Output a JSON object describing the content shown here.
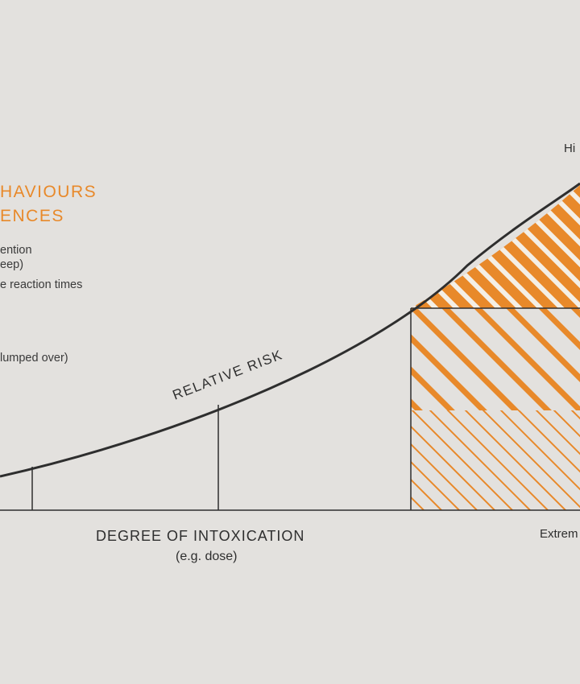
{
  "legend": {
    "heading_line1": "HAVIOURS",
    "heading_line2": "ENCES",
    "items": [
      "ention",
      "eep)",
      "e reaction times",
      "lumped over)"
    ]
  },
  "curve_label": "RELATIVE RISK",
  "x_axis": {
    "label": "DEGREE OF INTOXICATION",
    "sublabel": "(e.g. dose)",
    "right_label": "Extrem"
  },
  "top_right_label": "Hi",
  "colors": {
    "background": "#e3e1de",
    "accent": "#e8892a",
    "line": "#2e2e2e"
  }
}
